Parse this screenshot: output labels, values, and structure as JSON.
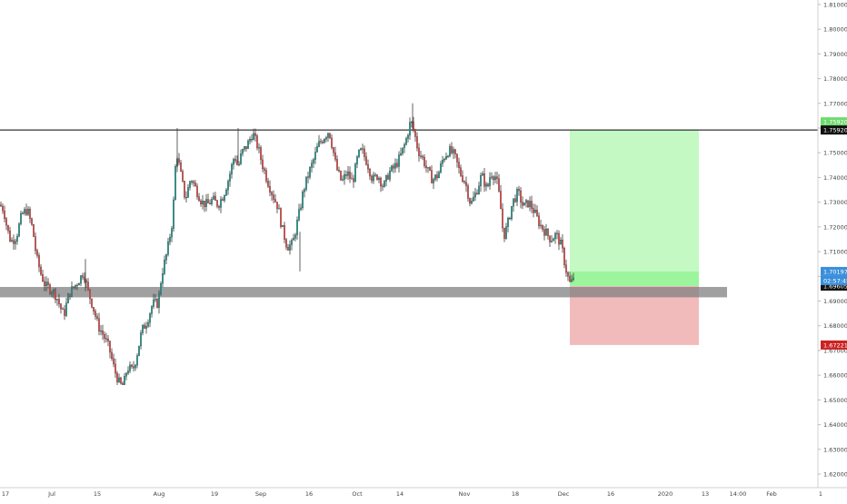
{
  "chart_data": {
    "type": "candlestick",
    "symbol_hint": "",
    "x_tick_labels": [
      "17",
      "Jul",
      "15",
      "Aug",
      "19",
      "Sep",
      "16",
      "Oct",
      "14",
      "Nov",
      "18",
      "Dec",
      "16",
      "2020",
      "13",
      "14:00",
      "Feb",
      "1"
    ],
    "y_tick_labels": [
      "1.81000",
      "1.80000",
      "1.79000",
      "1.78000",
      "1.77000",
      "1.76000",
      "1.75000",
      "1.74000",
      "1.73000",
      "1.72000",
      "1.71000",
      "1.70000",
      "1.69000",
      "1.68000",
      "1.67000",
      "1.66000",
      "1.65000",
      "1.64000",
      "1.63000",
      "1.62000"
    ],
    "y_tick_values": [
      1.81,
      1.8,
      1.79,
      1.78,
      1.77,
      1.76,
      1.75,
      1.74,
      1.73,
      1.72,
      1.71,
      1.7,
      1.69,
      1.68,
      1.67,
      1.66,
      1.65,
      1.64,
      1.63,
      1.62
    ],
    "ylim": [
      1.6145,
      1.8118
    ],
    "grid": false,
    "price_path": [
      [
        0,
        1.7289
      ],
      [
        4,
        1.727
      ],
      [
        8,
        1.719
      ],
      [
        12,
        1.714
      ],
      [
        18,
        1.716
      ],
      [
        24,
        1.725
      ],
      [
        30,
        1.727
      ],
      [
        36,
        1.719
      ],
      [
        40,
        1.708
      ],
      [
        45,
        1.701
      ],
      [
        50,
        1.696
      ],
      [
        56,
        1.695
      ],
      [
        62,
        1.692
      ],
      [
        66,
        1.688
      ],
      [
        70,
        1.684
      ],
      [
        76,
        1.693
      ],
      [
        82,
        1.696
      ],
      [
        88,
        1.699
      ],
      [
        92,
        1.702
      ],
      [
        96,
        1.695
      ],
      [
        102,
        1.688
      ],
      [
        108,
        1.68
      ],
      [
        114,
        1.676
      ],
      [
        120,
        1.671
      ],
      [
        126,
        1.662
      ],
      [
        132,
        1.656
      ],
      [
        136,
        1.656
      ],
      [
        140,
        1.663
      ],
      [
        146,
        1.662
      ],
      [
        150,
        1.667
      ],
      [
        156,
        1.678
      ],
      [
        162,
        1.682
      ],
      [
        168,
        1.689
      ],
      [
        174,
        1.689
      ],
      [
        178,
        1.701
      ],
      [
        184,
        1.71
      ],
      [
        190,
        1.723
      ],
      [
        194,
        1.751
      ],
      [
        198,
        1.743
      ],
      [
        204,
        1.731
      ],
      [
        210,
        1.74
      ],
      [
        216,
        1.735
      ],
      [
        222,
        1.73
      ],
      [
        228,
        1.729
      ],
      [
        234,
        1.731
      ],
      [
        240,
        1.729
      ],
      [
        246,
        1.733
      ],
      [
        252,
        1.74
      ],
      [
        258,
        1.749
      ],
      [
        262,
        1.744
      ],
      [
        266,
        1.75
      ],
      [
        272,
        1.753
      ],
      [
        278,
        1.758
      ],
      [
        284,
        1.752
      ],
      [
        288,
        1.746
      ],
      [
        294,
        1.739
      ],
      [
        300,
        1.733
      ],
      [
        306,
        1.728
      ],
      [
        310,
        1.72
      ],
      [
        316,
        1.712
      ],
      [
        322,
        1.713
      ],
      [
        326,
        1.72
      ],
      [
        330,
        1.727
      ],
      [
        334,
        1.735
      ],
      [
        340,
        1.742
      ],
      [
        346,
        1.748
      ],
      [
        350,
        1.753
      ],
      [
        356,
        1.756
      ],
      [
        362,
        1.759
      ],
      [
        366,
        1.752
      ],
      [
        370,
        1.744
      ],
      [
        376,
        1.738
      ],
      [
        382,
        1.742
      ],
      [
        388,
        1.738
      ],
      [
        394,
        1.749
      ],
      [
        398,
        1.751
      ],
      [
        404,
        1.746
      ],
      [
        410,
        1.739
      ],
      [
        416,
        1.741
      ],
      [
        422,
        1.736
      ],
      [
        428,
        1.742
      ],
      [
        434,
        1.744
      ],
      [
        440,
        1.748
      ],
      [
        446,
        1.754
      ],
      [
        452,
        1.763
      ],
      [
        456,
        1.758
      ],
      [
        460,
        1.751
      ],
      [
        466,
        1.747
      ],
      [
        470,
        1.743
      ],
      [
        476,
        1.739
      ],
      [
        482,
        1.741
      ],
      [
        488,
        1.748
      ],
      [
        494,
        1.751
      ],
      [
        500,
        1.749
      ],
      [
        506,
        1.742
      ],
      [
        512,
        1.738
      ],
      [
        518,
        1.729
      ],
      [
        524,
        1.734
      ],
      [
        530,
        1.741
      ],
      [
        536,
        1.735
      ],
      [
        540,
        1.742
      ],
      [
        546,
        1.74
      ],
      [
        550,
        1.731
      ],
      [
        554,
        1.716
      ],
      [
        558,
        1.72
      ],
      [
        564,
        1.73
      ],
      [
        570,
        1.734
      ],
      [
        576,
        1.728
      ],
      [
        582,
        1.73
      ],
      [
        588,
        1.726
      ],
      [
        594,
        1.721
      ],
      [
        600,
        1.718
      ],
      [
        606,
        1.715
      ],
      [
        612,
        1.717
      ],
      [
        618,
        1.712
      ],
      [
        622,
        1.704
      ],
      [
        626,
        1.698
      ],
      [
        628,
        1.6965
      ],
      [
        632,
        1.701
      ]
    ],
    "horizontal_levels": [
      {
        "value": 1.7592,
        "label": "1.75920",
        "color": "#000000"
      }
    ],
    "support_zone": {
      "from": 1.6915,
      "to": 1.6957,
      "color": "#808080"
    },
    "position": {
      "entry": 1.69605,
      "target": 1.7592,
      "stop": 1.67221,
      "current": 1.70197,
      "profit_color": "#7cf27c",
      "loss_color": "#e88383"
    },
    "price_labels": {
      "target_label": "1.75920",
      "current_label": "1.70197",
      "current_timer": "02:57:45",
      "entry_label": "1.69605",
      "stop_label": "1.67221",
      "faint_target_label": "1.75920"
    },
    "colors": {
      "up_candle": "#26a69a",
      "down_candle": "#ef5350",
      "price_line": "#3a3a3a",
      "axis_text": "#444444",
      "current_price_bg": "#3a8fdc",
      "target_bg": "#5cd65c",
      "stop_bg": "#cc2222",
      "entry_bg": "#111111"
    }
  }
}
